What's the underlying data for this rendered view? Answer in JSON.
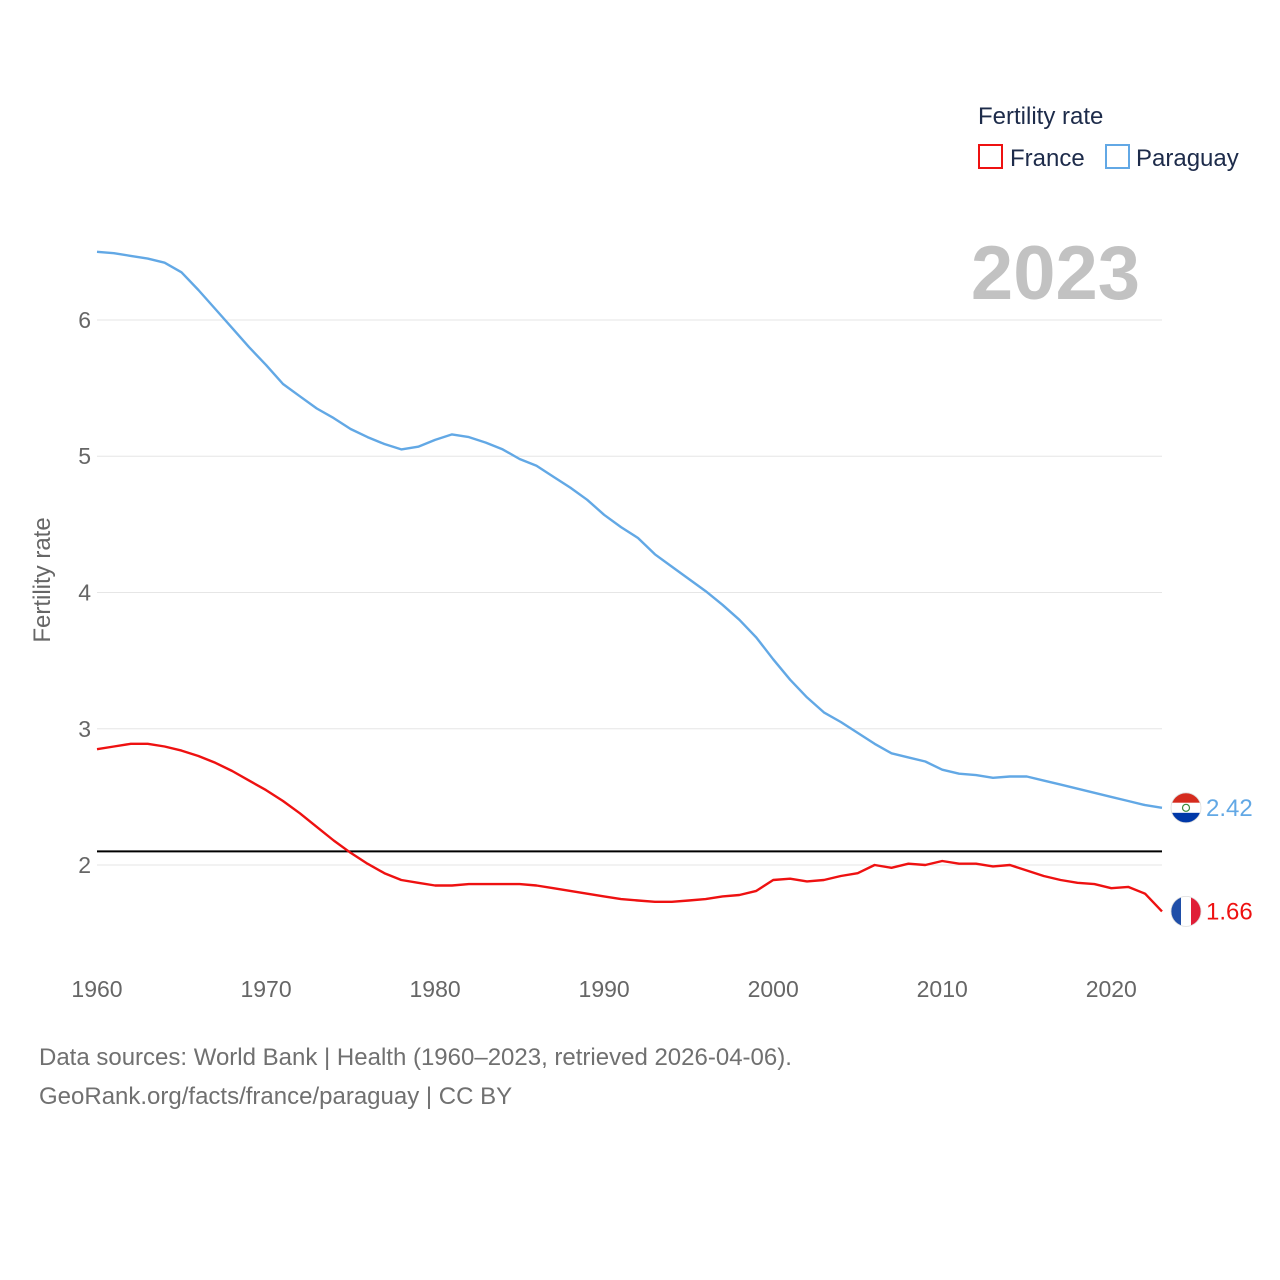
{
  "colors": {
    "france": "#ee1111",
    "paraguay": "#62a8e5",
    "grid": "#e6e6e6",
    "reference": "#000000"
  },
  "chart_data": {
    "type": "line",
    "title": "",
    "year_label": "2023",
    "xlabel": "",
    "ylabel": "Fertility rate",
    "xlim": [
      1960,
      2023
    ],
    "ylim": [
      1.45,
      6.55
    ],
    "x_ticks": [
      1960,
      1970,
      1980,
      1990,
      2000,
      2010,
      2020
    ],
    "y_ticks": [
      2,
      3,
      4,
      5,
      6
    ],
    "grid": true,
    "legend": {
      "title": "Fertility rate",
      "placement": "top-right"
    },
    "reference_line": {
      "y": 2.1
    },
    "x": [
      1960,
      1961,
      1962,
      1963,
      1964,
      1965,
      1966,
      1967,
      1968,
      1969,
      1970,
      1971,
      1972,
      1973,
      1974,
      1975,
      1976,
      1977,
      1978,
      1979,
      1980,
      1981,
      1982,
      1983,
      1984,
      1985,
      1986,
      1987,
      1988,
      1989,
      1990,
      1991,
      1992,
      1993,
      1994,
      1995,
      1996,
      1997,
      1998,
      1999,
      2000,
      2001,
      2002,
      2003,
      2004,
      2005,
      2006,
      2007,
      2008,
      2009,
      2010,
      2011,
      2012,
      2013,
      2014,
      2015,
      2016,
      2017,
      2018,
      2019,
      2020,
      2021,
      2022,
      2023
    ],
    "series": [
      {
        "name": "France",
        "color_key": "france",
        "end_label": "1.66",
        "flag": "france-flag",
        "values": [
          2.85,
          2.87,
          2.89,
          2.89,
          2.87,
          2.84,
          2.8,
          2.75,
          2.69,
          2.62,
          2.55,
          2.47,
          2.38,
          2.28,
          2.18,
          2.09,
          2.01,
          1.94,
          1.89,
          1.87,
          1.85,
          1.85,
          1.86,
          1.86,
          1.86,
          1.86,
          1.85,
          1.83,
          1.81,
          1.79,
          1.77,
          1.75,
          1.74,
          1.73,
          1.73,
          1.74,
          1.75,
          1.77,
          1.78,
          1.81,
          1.89,
          1.9,
          1.88,
          1.89,
          1.92,
          1.94,
          2.0,
          1.98,
          2.01,
          2.0,
          2.03,
          2.01,
          2.01,
          1.99,
          2.0,
          1.96,
          1.92,
          1.89,
          1.87,
          1.86,
          1.83,
          1.84,
          1.79,
          1.66
        ]
      },
      {
        "name": "Paraguay",
        "color_key": "paraguay",
        "end_label": "2.42",
        "flag": "paraguay-flag",
        "values": [
          6.5,
          6.49,
          6.47,
          6.45,
          6.42,
          6.35,
          6.22,
          6.08,
          5.94,
          5.8,
          5.67,
          5.53,
          5.44,
          5.35,
          5.28,
          5.2,
          5.14,
          5.09,
          5.05,
          5.07,
          5.12,
          5.16,
          5.14,
          5.1,
          5.05,
          4.98,
          4.93,
          4.85,
          4.77,
          4.68,
          4.57,
          4.48,
          4.4,
          4.28,
          4.19,
          4.1,
          4.01,
          3.91,
          3.8,
          3.67,
          3.51,
          3.36,
          3.23,
          3.12,
          3.05,
          2.97,
          2.89,
          2.82,
          2.79,
          2.76,
          2.7,
          2.67,
          2.66,
          2.64,
          2.65,
          2.65,
          2.62,
          2.59,
          2.56,
          2.53,
          2.5,
          2.47,
          2.44,
          2.42
        ]
      }
    ]
  },
  "footer": {
    "sources": "Data sources: World Bank | Health (1960–2023, retrieved 2026-04-06).",
    "attribution": "GeoRank.org/facts/france/paraguay | CC BY"
  }
}
